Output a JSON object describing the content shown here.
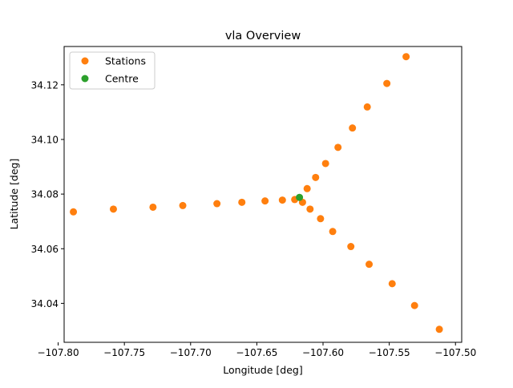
{
  "chart_data": {
    "type": "scatter",
    "title": "vla Overview",
    "xlabel": "Longitude [deg]",
    "ylabel": "Latitude [deg]",
    "xlim": [
      -107.7955,
      -107.4953
    ],
    "ylim": [
      34.02574,
      34.13403
    ],
    "x_ticks": [
      -107.8,
      -107.75,
      -107.7,
      -107.65,
      -107.6,
      -107.55,
      -107.5
    ],
    "x_tick_labels": [
      "−107.80",
      "−107.75",
      "−107.70",
      "−107.65",
      "−107.60",
      "−107.55",
      "−107.50"
    ],
    "y_ticks": [
      34.04,
      34.06,
      34.08,
      34.1,
      34.12
    ],
    "y_tick_labels": [
      "34.04",
      "34.06",
      "34.08",
      "34.10",
      "34.12"
    ],
    "grid": false,
    "legend_position": "top-left",
    "series": [
      {
        "name": "Stations",
        "color": "#ff7f0e",
        "points": [
          [
            -107.7885,
            34.0735
          ],
          [
            -107.7583,
            34.0745
          ],
          [
            -107.7284,
            34.0752
          ],
          [
            -107.7059,
            34.0758
          ],
          [
            -107.6801,
            34.0765
          ],
          [
            -107.6613,
            34.077
          ],
          [
            -107.6438,
            34.0775
          ],
          [
            -107.6307,
            34.0778
          ],
          [
            -107.6214,
            34.078
          ],
          [
            -107.6155,
            34.077
          ],
          [
            -107.6098,
            34.0745
          ],
          [
            -107.6019,
            34.071
          ],
          [
            -107.5927,
            34.0663
          ],
          [
            -107.579,
            34.0608
          ],
          [
            -107.5652,
            34.0543
          ],
          [
            -107.5478,
            34.0472
          ],
          [
            -107.5309,
            34.0392
          ],
          [
            -107.5122,
            34.0305
          ],
          [
            -107.612,
            34.082
          ],
          [
            -107.6056,
            34.0861
          ],
          [
            -107.5981,
            34.0912
          ],
          [
            -107.5887,
            34.0971
          ],
          [
            -107.5778,
            34.1042
          ],
          [
            -107.5666,
            34.1119
          ],
          [
            -107.5518,
            34.1205
          ],
          [
            -107.5373,
            34.1303
          ]
        ]
      },
      {
        "name": "Centre",
        "color": "#2ca02c",
        "points": [
          [
            -107.6178,
            34.0788
          ]
        ]
      }
    ]
  }
}
